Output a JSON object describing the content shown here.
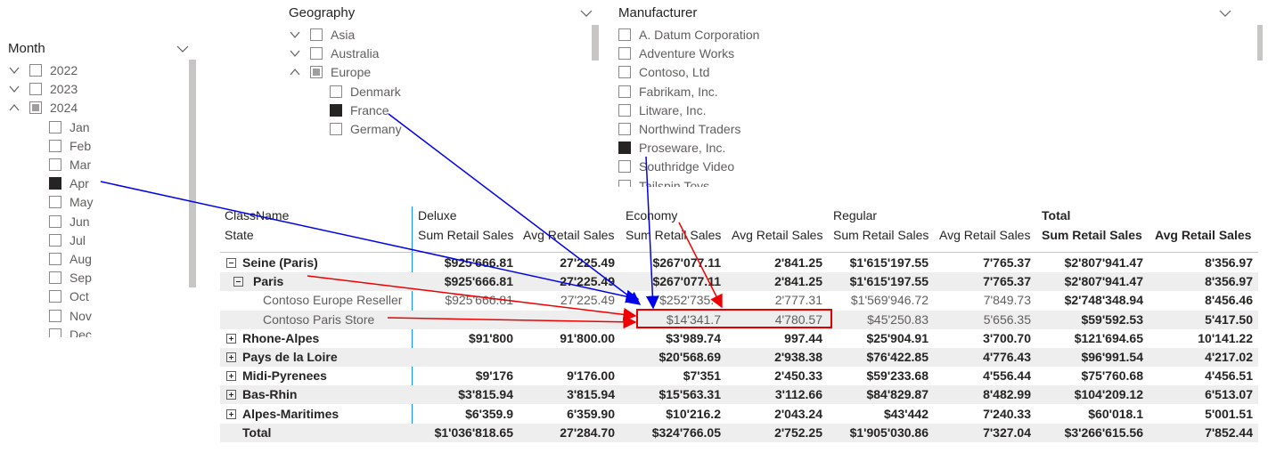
{
  "slicers": {
    "month": {
      "title": "Month",
      "items": [
        {
          "label": "2022",
          "expanded": false
        },
        {
          "label": "2023",
          "expanded": false
        },
        {
          "label": "2024",
          "expanded": true,
          "state": "partial",
          "children": [
            {
              "label": "Jan"
            },
            {
              "label": "Feb"
            },
            {
              "label": "Mar"
            },
            {
              "label": "Apr",
              "state": "checked"
            },
            {
              "label": "May"
            },
            {
              "label": "Jun"
            },
            {
              "label": "Jul"
            },
            {
              "label": "Aug"
            },
            {
              "label": "Sep"
            },
            {
              "label": "Oct"
            },
            {
              "label": "Nov"
            },
            {
              "label": "Dec"
            }
          ]
        }
      ]
    },
    "geography": {
      "title": "Geography",
      "items": [
        {
          "label": "Asia",
          "expanded": false
        },
        {
          "label": "Australia",
          "expanded": false
        },
        {
          "label": "Europe",
          "expanded": true,
          "state": "partial",
          "children": [
            {
              "label": "Denmark"
            },
            {
              "label": "France",
              "state": "checked"
            },
            {
              "label": "Germany"
            }
          ]
        }
      ]
    },
    "manufacturer": {
      "title": "Manufacturer",
      "items": [
        {
          "label": "A. Datum Corporation"
        },
        {
          "label": "Adventure Works"
        },
        {
          "label": "Contoso, Ltd"
        },
        {
          "label": "Fabrikam, Inc."
        },
        {
          "label": "Litware, Inc."
        },
        {
          "label": "Northwind Traders"
        },
        {
          "label": "Proseware, Inc.",
          "state": "checked"
        },
        {
          "label": "Southridge Video"
        },
        {
          "label": "Tailspin Toys"
        }
      ]
    }
  },
  "matrix": {
    "column_field": "ClassName",
    "row_field": "State",
    "groups": [
      {
        "name": "Deluxe",
        "measures": [
          "Sum Retail Sales",
          "Avg Retail Sales"
        ]
      },
      {
        "name": "Economy",
        "measures": [
          "Sum Retail Sales",
          "Avg Retail Sales"
        ]
      },
      {
        "name": "Regular",
        "measures": [
          "Sum Retail Sales",
          "Avg Retail Sales"
        ]
      },
      {
        "name": "Total",
        "measures": [
          "Sum Retail Sales",
          "Avg Retail Sales"
        ]
      }
    ],
    "rows": [
      {
        "label": "Seine (Paris)",
        "expanded": true,
        "values": [
          "$925'666.81",
          "27'225.49",
          "$267'077.11",
          "2'841.25",
          "$1'615'197.55",
          "7'765.37",
          "$2'807'941.47",
          "8'356.97"
        ],
        "children": [
          {
            "label": "Paris",
            "expanded": true,
            "values": [
              "$925'666.81",
              "27'225.49",
              "$267'077.11",
              "2'841.25",
              "$1'615'197.55",
              "7'765.37",
              "$2'807'941.47",
              "8'356.97"
            ],
            "children": [
              {
                "label": "Contoso Europe Reseller",
                "values": [
                  "$925'666.81",
                  "27'225.49",
                  "$252'735.4",
                  "2'777.31",
                  "$1'569'946.72",
                  "7'849.73",
                  "$2'748'348.94",
                  "8'456.46"
                ]
              },
              {
                "label": "Contoso Paris Store",
                "values": [
                  null,
                  null,
                  "$14'341.7",
                  "4'780.57",
                  "$45'250.83",
                  "5'656.35",
                  "$59'592.53",
                  "5'417.50"
                ]
              }
            ]
          }
        ]
      },
      {
        "label": "Rhone-Alpes",
        "expanded": false,
        "values": [
          "$91'800",
          "91'800.00",
          "$3'989.74",
          "997.44",
          "$25'904.91",
          "3'700.70",
          "$121'694.65",
          "10'141.22"
        ]
      },
      {
        "label": "Pays de la Loire",
        "expanded": false,
        "values": [
          null,
          null,
          "$20'568.69",
          "2'938.38",
          "$76'422.85",
          "4'776.43",
          "$96'991.54",
          "4'217.02"
        ]
      },
      {
        "label": "Midi-Pyrenees",
        "expanded": false,
        "values": [
          "$9'176",
          "9'176.00",
          "$7'351",
          "2'450.33",
          "$59'233.68",
          "4'556.44",
          "$75'760.68",
          "4'456.51"
        ]
      },
      {
        "label": "Bas-Rhin",
        "expanded": false,
        "values": [
          "$3'815.94",
          "3'815.94",
          "$15'563.31",
          "3'112.66",
          "$84'829.87",
          "8'482.99",
          "$104'209.12",
          "6'513.07"
        ]
      },
      {
        "label": "Alpes-Maritimes",
        "expanded": false,
        "values": [
          "$6'359.9",
          "6'359.90",
          "$10'216.2",
          "2'043.24",
          "$43'442",
          "7'240.33",
          "$60'018.1",
          "5'001.51"
        ]
      }
    ],
    "total": {
      "label": "Total",
      "values": [
        "$1'036'818.65",
        "27'284.70",
        "$324'766.05",
        "2'752.25",
        "$1'905'030.86",
        "7'327.04",
        "$3'266'615.56",
        "7'852.44"
      ]
    }
  }
}
